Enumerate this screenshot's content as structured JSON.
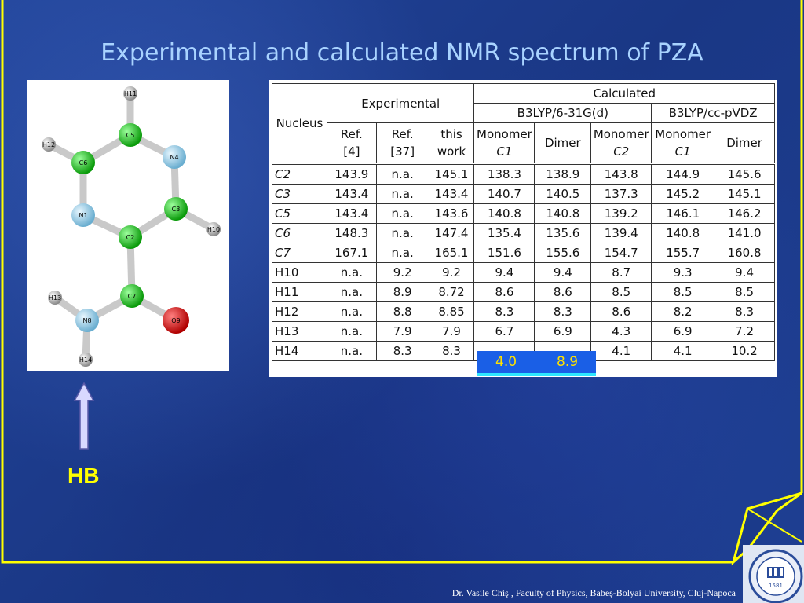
{
  "slide": {
    "title": "Experimental and calculated NMR spectrum of PZA",
    "footer": "Dr. Vasile Chiş , Faculty of Physics, Babeş-Bolyai University, Cluj-Napoca",
    "hb_label": "HB",
    "logo_text": "UNIVERSITAS NAPOCENSIS · ROMANIA",
    "logo_year": "1581",
    "colors": {
      "title": "#a9d3ff",
      "frame": "#ffff00",
      "highlight": "#1a5fe6",
      "highlight_text": "#ffe100"
    }
  },
  "molecule": {
    "atoms": [
      {
        "label": "H11",
        "type": "H"
      },
      {
        "label": "C5",
        "type": "C"
      },
      {
        "label": "H12",
        "type": "H"
      },
      {
        "label": "C6",
        "type": "C"
      },
      {
        "label": "N4",
        "type": "N"
      },
      {
        "label": "C3",
        "type": "C"
      },
      {
        "label": "N1",
        "type": "N"
      },
      {
        "label": "H10",
        "type": "H"
      },
      {
        "label": "C2",
        "type": "C"
      },
      {
        "label": "C7",
        "type": "C"
      },
      {
        "label": "H13",
        "type": "H"
      },
      {
        "label": "N8",
        "type": "N"
      },
      {
        "label": "O9",
        "type": "O"
      },
      {
        "label": "H14",
        "type": "H"
      }
    ]
  },
  "table": {
    "h_nucleus": "Nucleus",
    "h_experimental": "Experimental",
    "h_calculated": "Calculated",
    "h_basis1": "B3LYP/6-31G(d)",
    "h_basis2": "B3LYP/cc-pVDZ",
    "sub": [
      [
        "Ref.",
        "[4]"
      ],
      [
        "Ref.",
        "[37]"
      ],
      [
        "this",
        "work"
      ],
      [
        "Monomer",
        "C1"
      ],
      [
        "Dimer",
        ""
      ],
      [
        "Monomer",
        "C2"
      ],
      [
        "Monomer",
        "C1"
      ],
      [
        "Dimer",
        ""
      ]
    ],
    "rows": [
      [
        "C2",
        "143.9",
        "n.a.",
        "145.1",
        "138.3",
        "138.9",
        "143.8",
        "144.9",
        "145.6"
      ],
      [
        "C3",
        "143.4",
        "n.a.",
        "143.4",
        "140.7",
        "140.5",
        "137.3",
        "145.2",
        "145.1"
      ],
      [
        "C5",
        "143.4",
        "n.a.",
        "143.6",
        "140.8",
        "140.8",
        "139.2",
        "146.1",
        "146.2"
      ],
      [
        "C6",
        "148.3",
        "n.a.",
        "147.4",
        "135.4",
        "135.6",
        "139.4",
        "140.8",
        "141.0"
      ],
      [
        "C7",
        "167.1",
        "n.a.",
        "165.1",
        "151.6",
        "155.6",
        "154.7",
        "155.7",
        "160.8"
      ],
      [
        "H10",
        "n.a.",
        "9.2",
        "9.2",
        "9.4",
        "9.4",
        "8.7",
        "9.3",
        "9.4"
      ],
      [
        "H11",
        "n.a.",
        "8.9",
        "8.72",
        "8.6",
        "8.6",
        "8.5",
        "8.5",
        "8.5"
      ],
      [
        "H12",
        "n.a.",
        "8.8",
        "8.85",
        "8.3",
        "8.3",
        "8.6",
        "8.2",
        "8.3"
      ],
      [
        "H13",
        "n.a.",
        "7.9",
        "7.9",
        "6.7",
        "6.9",
        "4.3",
        "6.9",
        "7.2"
      ],
      [
        "H14",
        "n.a.",
        "8.3",
        "8.3",
        "",
        "",
        "4.1",
        "4.1",
        "10.2"
      ]
    ],
    "highlight": [
      "4.0",
      "8.9"
    ]
  }
}
